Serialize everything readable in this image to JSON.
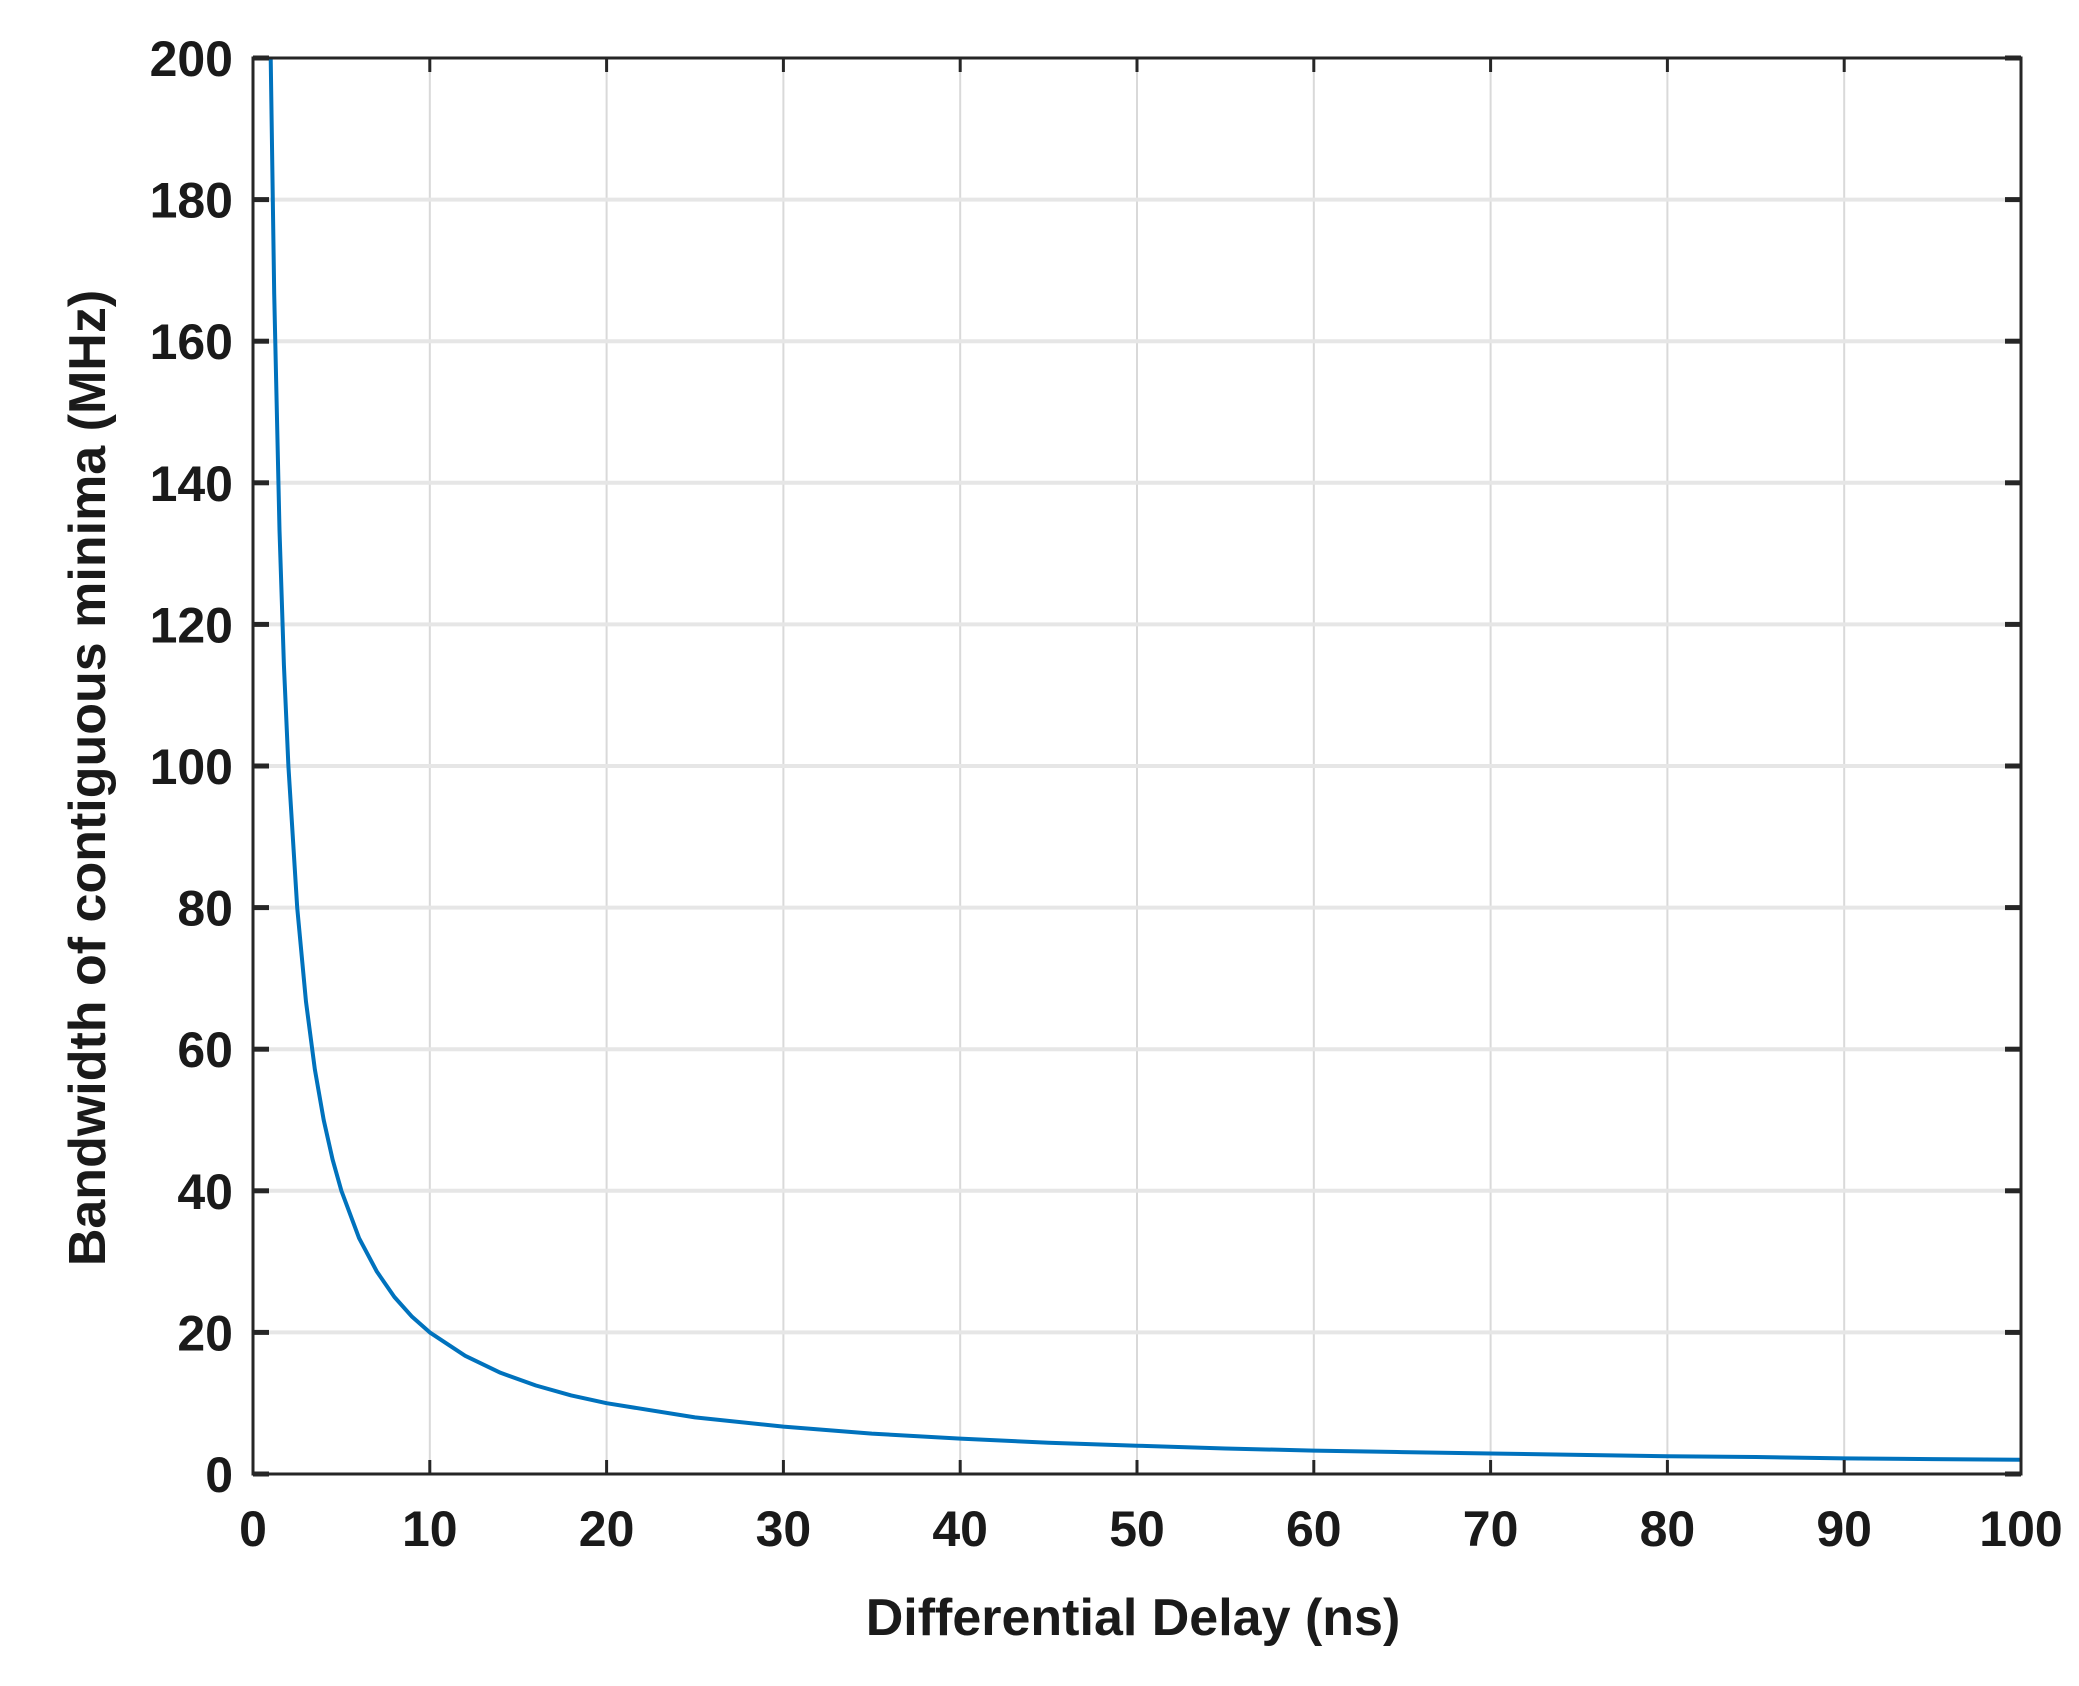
{
  "chart_data": {
    "type": "line",
    "title": "",
    "xlabel": "Differential Delay (ns)",
    "ylabel": "Bandwidth of contiguous minima (MHz)",
    "xlim": [
      0,
      100
    ],
    "ylim": [
      0,
      200
    ],
    "x_ticks": [
      "0",
      "10",
      "20",
      "30",
      "40",
      "50",
      "60",
      "70",
      "80",
      "90",
      "100"
    ],
    "y_ticks": [
      "0",
      "20",
      "40",
      "60",
      "80",
      "100",
      "120",
      "140",
      "160",
      "180",
      "200"
    ],
    "grid": true,
    "series": [
      {
        "color": "#0072bd",
        "x": [
          1,
          1.2,
          1.5,
          1.75,
          2,
          2.5,
          3,
          3.5,
          4,
          4.5,
          5,
          6,
          7,
          8,
          9,
          10,
          12,
          14,
          16,
          18,
          20,
          25,
          30,
          35,
          40,
          45,
          50,
          55,
          60,
          65,
          70,
          75,
          80,
          85,
          90,
          95,
          100
        ],
        "y": [
          200,
          166.7,
          133.3,
          114.3,
          100,
          80,
          66.7,
          57.1,
          50,
          44.4,
          40,
          33.3,
          28.6,
          25,
          22.2,
          20,
          16.7,
          14.3,
          12.5,
          11.1,
          10,
          8,
          6.7,
          5.7,
          5,
          4.4,
          4,
          3.6,
          3.3,
          3.1,
          2.9,
          2.7,
          2.5,
          2.4,
          2.2,
          2.1,
          2
        ]
      }
    ]
  }
}
